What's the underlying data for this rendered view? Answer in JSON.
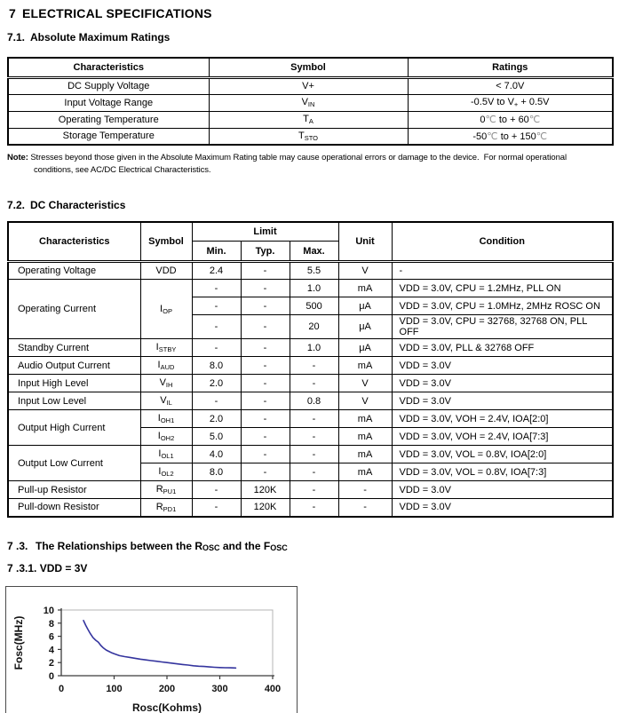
{
  "page": {
    "num": "7",
    "title": "ELECTRICAL SPECIFICATIONS"
  },
  "sec71": {
    "num": "7.1.",
    "title": "Absolute Maximum Ratings"
  },
  "amr": {
    "h_char": "Characteristics",
    "h_sym": "Symbol",
    "h_rating": "Ratings",
    "rows": [
      {
        "char": "DC Supply Voltage",
        "sym": "V+",
        "sub": "",
        "rating": "< 7.0V"
      },
      {
        "char": "Input Voltage Range",
        "sym": "V",
        "sub": "IN",
        "r_pre": "-0.5V to V",
        "r_sub": "+",
        "r_post": " + 0.5V"
      },
      {
        "char": "Operating Temperature",
        "sym": "T",
        "sub": "A",
        "t_pre": "0",
        "deg1": "℃",
        "t_mid": " to + 60",
        "deg2": "℃"
      },
      {
        "char": "Storage Temperature",
        "sym": "T",
        "sub": "STO",
        "t_pre": "-50",
        "deg1": "℃",
        "t_mid": " to + 150",
        "deg2": "℃"
      }
    ]
  },
  "note": {
    "label": "Note:",
    "text": " Stresses beyond those given in the Absolute Maximum Rating table may cause operational errors or damage to the device.  For normal operational\nconditions, see AC/DC Electrical Characteristics."
  },
  "sec72": {
    "num": "7.2.",
    "title": "DC Characteristics"
  },
  "dc": {
    "h_char": "Characteristics",
    "h_sym": "Symbol",
    "h_limit": "Limit",
    "h_min": "Min.",
    "h_typ": "Typ.",
    "h_max": "Max.",
    "h_unit": "Unit",
    "h_cond": "Condition",
    "rows": [
      {
        "char": "Operating Voltage",
        "sym": "VDD",
        "sub": "",
        "min": "2.4",
        "typ": "-",
        "max": "5.5",
        "unit": "V",
        "cond": "-"
      },
      {
        "char": "Operating Current",
        "sym": "I",
        "sub": "OP",
        "min": "-",
        "typ": "-",
        "max": "1.0",
        "unit": "mA",
        "cond": "VDD = 3.0V, CPU = 1.2MHz, PLL ON"
      },
      {
        "min": "-",
        "typ": "-",
        "max": "500",
        "unit": "μA",
        "cond": "VDD = 3.0V, CPU = 1.0MHz, 2MHz ROSC ON"
      },
      {
        "min": "-",
        "typ": "-",
        "max": "20",
        "unit": "μA",
        "cond": "VDD = 3.0V, CPU = 32768, 32768 ON, PLL OFF"
      },
      {
        "char": "Standby Current",
        "sym": "I",
        "sub": "STBY",
        "min": "-",
        "typ": "-",
        "max": "1.0",
        "unit": "μA",
        "cond": "VDD = 3.0V, PLL & 32768 OFF"
      },
      {
        "char": "Audio Output Current",
        "sym": "I",
        "sub": "AUD",
        "min": "8.0",
        "typ": "-",
        "max": "-",
        "unit": "mA",
        "cond": "VDD = 3.0V"
      },
      {
        "char": "Input High Level",
        "sym": "V",
        "sub": "IH",
        "min": "2.0",
        "typ": "-",
        "max": "-",
        "unit": "V",
        "cond": "VDD = 3.0V"
      },
      {
        "char": "Input Low Level",
        "sym": "V",
        "sub": "IL",
        "min": "-",
        "typ": "-",
        "max": "0.8",
        "unit": "V",
        "cond": "VDD = 3.0V"
      },
      {
        "char": "Output High Current",
        "sym": "I",
        "sub": "OH1",
        "min": "2.0",
        "typ": "-",
        "max": "-",
        "unit": "mA",
        "cond": "VDD = 3.0V, VOH = 2.4V, IOA[2:0]"
      },
      {
        "sym": "I",
        "sub": "OH2",
        "min": "5.0",
        "typ": "-",
        "max": "-",
        "unit": "mA",
        "cond": "VDD = 3.0V, VOH = 2.4V, IOA[7:3]"
      },
      {
        "char": "Output Low Current",
        "sym": "I",
        "sub": "OL1",
        "min": "4.0",
        "typ": "-",
        "max": "-",
        "unit": "mA",
        "cond": "VDD = 3.0V, VOL = 0.8V, IOA[2:0]"
      },
      {
        "sym": "I",
        "sub": "OL2",
        "min": "8.0",
        "typ": "-",
        "max": "-",
        "unit": "mA",
        "cond": "VDD = 3.0V, VOL = 0.8V, IOA[7:3]"
      },
      {
        "char": "Pull-up Resistor",
        "sym": "R",
        "sub": "PU1",
        "min": "-",
        "typ": "120K",
        "max": "-",
        "unit": "-",
        "cond": "VDD = 3.0V"
      },
      {
        "char": "Pull-down Resistor",
        "sym": "R",
        "sub": "PD1",
        "min": "-",
        "typ": "120K",
        "max": "-",
        "unit": "-",
        "cond": "VDD = 3.0V"
      }
    ]
  },
  "sec73": {
    "num": "7 .3.",
    "t1": "The Relationships between the R",
    "s1": "OSC",
    "t2": " and the F",
    "s2": "OSC"
  },
  "sec731": {
    "title": "7 .3.1. VDD = 3V"
  },
  "chart_data": {
    "type": "line",
    "title": "",
    "xlabel": "Rosc(Kohms)",
    "ylabel": "Fosc(MHz)",
    "xlim": [
      0,
      400
    ],
    "ylim": [
      0,
      10
    ],
    "xticks": [
      0,
      100,
      200,
      300,
      400
    ],
    "yticks": [
      0,
      2,
      4,
      6,
      8,
      10
    ],
    "grid": false,
    "legend": false,
    "line_color": "#34349e",
    "series": [
      {
        "name": "Fosc vs Rosc at VDD = 3V",
        "points": [
          [
            42,
            8.4
          ],
          [
            46,
            7.7
          ],
          [
            50,
            7.1
          ],
          [
            55,
            6.4
          ],
          [
            60,
            5.8
          ],
          [
            65,
            5.4
          ],
          [
            70,
            5.1
          ],
          [
            75,
            4.6
          ],
          [
            80,
            4.2
          ],
          [
            85,
            3.9
          ],
          [
            90,
            3.7
          ],
          [
            95,
            3.5
          ],
          [
            100,
            3.35
          ],
          [
            110,
            3.05
          ],
          [
            120,
            2.9
          ],
          [
            130,
            2.78
          ],
          [
            140,
            2.65
          ],
          [
            150,
            2.52
          ],
          [
            160,
            2.4
          ],
          [
            170,
            2.3
          ],
          [
            180,
            2.2
          ],
          [
            190,
            2.1
          ],
          [
            200,
            2.0
          ],
          [
            210,
            1.9
          ],
          [
            220,
            1.8
          ],
          [
            230,
            1.7
          ],
          [
            240,
            1.62
          ],
          [
            250,
            1.52
          ],
          [
            260,
            1.45
          ],
          [
            270,
            1.4
          ],
          [
            280,
            1.34
          ],
          [
            290,
            1.28
          ],
          [
            300,
            1.25
          ],
          [
            310,
            1.22
          ],
          [
            320,
            1.2
          ],
          [
            330,
            1.18
          ]
        ]
      }
    ]
  }
}
